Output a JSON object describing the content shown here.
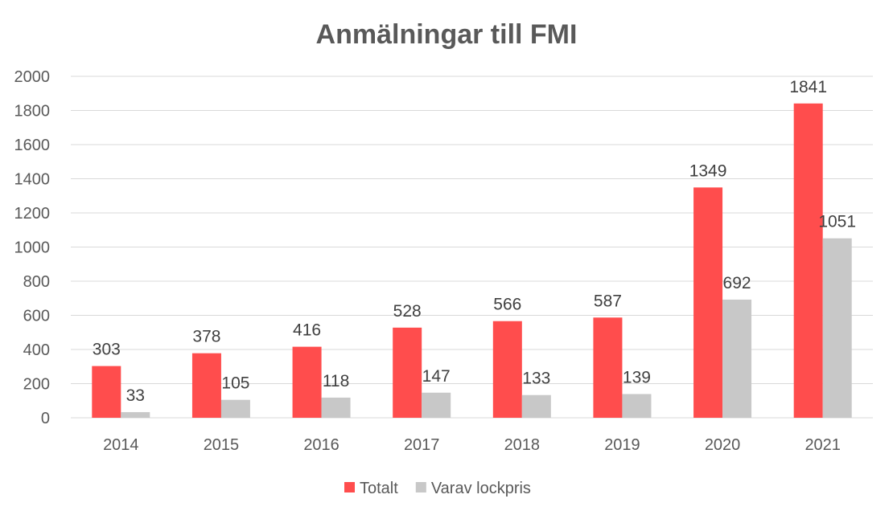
{
  "chart_data": {
    "type": "bar",
    "title": "Anmälningar till FMI",
    "xlabel": "",
    "ylabel": "",
    "categories": [
      "2014",
      "2015",
      "2016",
      "2017",
      "2018",
      "2019",
      "2020",
      "2021"
    ],
    "series": [
      {
        "name": "Totalt",
        "color": "#FF4D4D",
        "values": [
          303,
          378,
          416,
          528,
          566,
          587,
          1349,
          1841
        ]
      },
      {
        "name": "Varav lockpris",
        "color": "#C8C8C8",
        "values": [
          33,
          105,
          118,
          147,
          133,
          139,
          692,
          1051
        ]
      }
    ],
    "ylim": [
      0,
      2000
    ],
    "yticks": [
      0,
      200,
      400,
      600,
      800,
      1000,
      1200,
      1400,
      1600,
      1800,
      2000
    ],
    "grid": true,
    "legend_position": "bottom"
  }
}
